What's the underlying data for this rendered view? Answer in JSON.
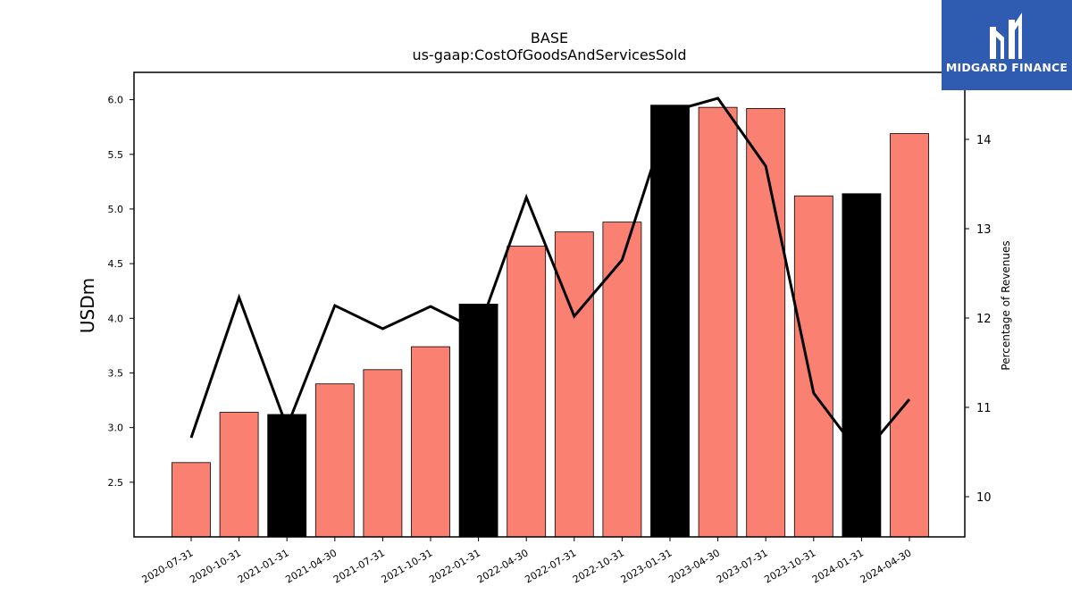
{
  "chart_data": {
    "type": "bar",
    "title": "BASE",
    "subtitle": "us-gaap:CostOfGoodsAndServicesSold",
    "ylabel": "USDm",
    "y2label": "Percentage of Revenues",
    "ylim": [
      2.0,
      6.25
    ],
    "y2lim": [
      9.55,
      14.75
    ],
    "yticks": [
      "2.5",
      "3.0",
      "3.5",
      "4.0",
      "4.5",
      "5.0",
      "5.5",
      "6.0"
    ],
    "y2ticks": [
      "10",
      "11",
      "12",
      "13",
      "14"
    ],
    "categories": [
      "2020-07-31",
      "2020-10-31",
      "2021-01-31",
      "2021-04-30",
      "2021-07-31",
      "2021-10-31",
      "2022-01-31",
      "2022-04-30",
      "2022-07-31",
      "2022-10-31",
      "2023-01-31",
      "2023-04-30",
      "2023-07-31",
      "2023-10-31",
      "2024-01-31",
      "2024-04-30"
    ],
    "values": [
      2.68,
      3.14,
      3.12,
      3.4,
      3.53,
      3.74,
      4.13,
      4.66,
      4.79,
      4.88,
      5.95,
      5.93,
      5.92,
      5.12,
      5.14,
      5.69
    ],
    "highlight": [
      false,
      false,
      true,
      false,
      false,
      false,
      true,
      false,
      false,
      false,
      true,
      false,
      false,
      false,
      true,
      false
    ],
    "line": {
      "name": "Percentage of Revenues",
      "values": [
        10.66,
        12.23,
        10.78,
        12.14,
        11.88,
        12.13,
        11.86,
        13.35,
        12.02,
        12.65,
        14.31,
        14.46,
        13.7,
        11.16,
        10.45,
        11.09
      ]
    },
    "colors": {
      "bar": "#fa8072",
      "highlight": "#000000",
      "line": "#000000"
    },
    "grid": false
  },
  "logo": {
    "text": "MIDGARD FINANCE",
    "background": "#2f5bb0"
  }
}
